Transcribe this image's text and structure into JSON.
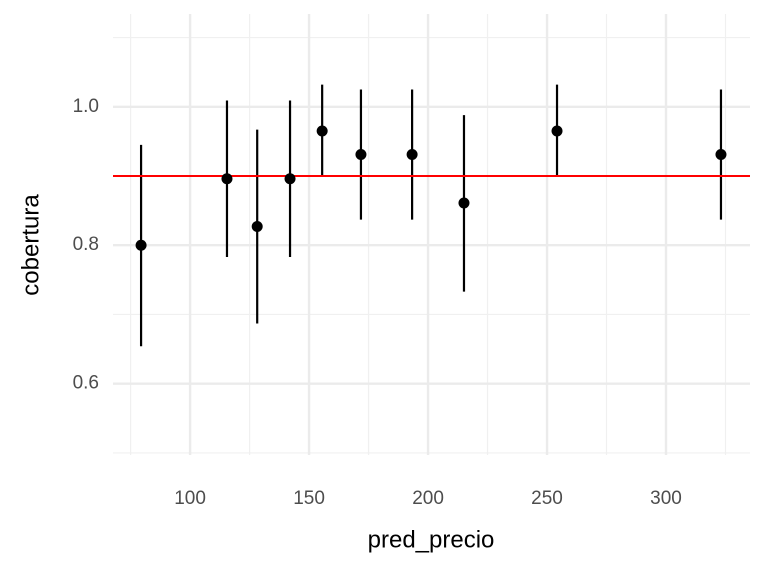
{
  "chart_data": {
    "type": "pointrange",
    "x_label": "pred_precio",
    "y_label": "cobertura",
    "x": [
      79.4,
      115.5,
      128.2,
      142,
      155.5,
      171.8,
      193.3,
      215.1,
      254.2,
      323.1
    ],
    "values": [
      0.8,
      0.896,
      0.827,
      0.896,
      0.965,
      0.931,
      0.931,
      0.861,
      0.965,
      0.931
    ],
    "lower": [
      0.654,
      0.783,
      0.687,
      0.783,
      0.9,
      0.837,
      0.837,
      0.733,
      0.9,
      0.837
    ],
    "upper": [
      0.945,
      1.009,
      0.967,
      1.009,
      1.032,
      1.025,
      1.025,
      0.988,
      1.032,
      1.025
    ],
    "color": "#000000",
    "reference_line": {
      "value": 0.9,
      "color": "#ff0000"
    },
    "xlim": [
      67.6,
      335.3
    ],
    "ylim": [
      0.497,
      1.134
    ],
    "xticks": [
      100,
      150,
      200,
      250,
      300
    ],
    "yticks": [
      0.6,
      0.8,
      {
        "value": 1.0,
        "label": "1.0"
      }
    ],
    "xminorticks": [
      75,
      125,
      175,
      225,
      275,
      325
    ],
    "yminorticks": [
      0.5,
      0.7,
      0.9,
      1.1
    ],
    "grid": true
  }
}
